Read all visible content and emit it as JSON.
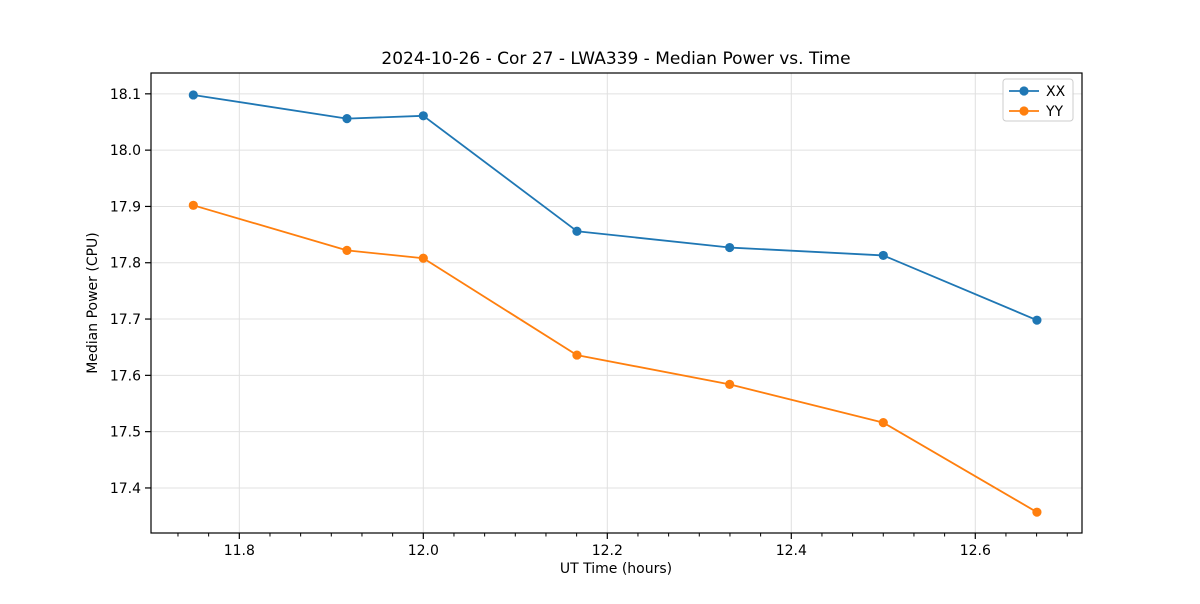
{
  "chart_data": {
    "type": "line",
    "title": "2024-10-26 - Cor 27 - LWA339 - Median Power vs. Time",
    "xlabel": "UT Time (hours)",
    "ylabel": "Median Power (CPU)",
    "x": [
      11.75,
      11.917,
      12.0,
      12.167,
      12.333,
      12.5,
      12.667
    ],
    "series": [
      {
        "name": "XX",
        "color": "#1f77b4",
        "values": [
          18.098,
          18.056,
          18.061,
          17.856,
          17.827,
          17.813,
          17.698
        ]
      },
      {
        "name": "YY",
        "color": "#ff7f0e",
        "values": [
          17.902,
          17.822,
          17.808,
          17.636,
          17.584,
          17.516,
          17.357
        ]
      }
    ],
    "xlim": [
      11.704,
      12.716
    ],
    "ylim": [
      17.32,
      18.137
    ],
    "xticks": [
      11.8,
      12.0,
      12.2,
      12.4,
      12.6
    ],
    "xtick_labels": [
      "11.8",
      "12.0",
      "12.2",
      "12.4",
      "12.6"
    ],
    "x_minor_step": 0.0333333,
    "yticks": [
      17.4,
      17.5,
      17.6,
      17.7,
      17.8,
      17.9,
      18.0,
      18.1
    ],
    "ytick_labels": [
      "17.4",
      "17.5",
      "17.6",
      "17.7",
      "17.8",
      "17.9",
      "18.0",
      "18.1"
    ],
    "grid": true,
    "legend": {
      "position": "upper right",
      "entries": [
        "XX",
        "YY"
      ]
    },
    "colors": {
      "grid": "#e0e0e0",
      "axis": "#000000",
      "text": "#000000",
      "background": "#ffffff"
    },
    "marker": "circle",
    "line_width": 1.8,
    "marker_radius": 4.6
  }
}
